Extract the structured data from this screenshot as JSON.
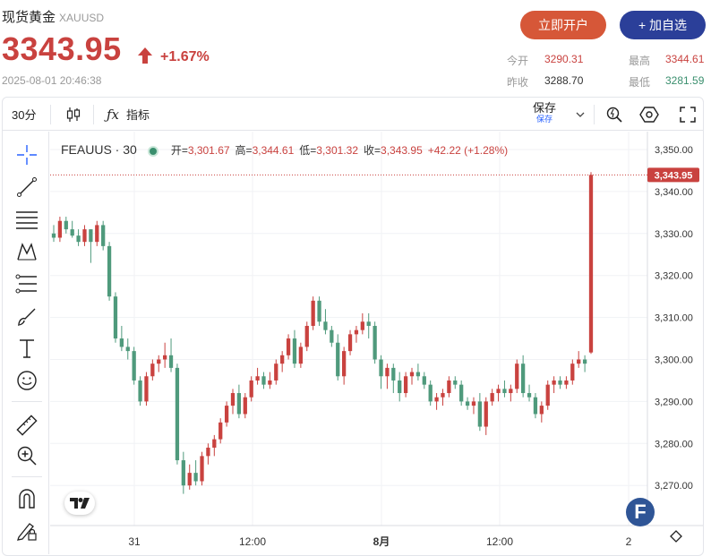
{
  "header": {
    "title": "现货黄金",
    "symbol": "XAUUSD",
    "price": "3343.95",
    "change_pct": "+1.67%",
    "timestamp": "2025-08-01 20:46:38",
    "open_account_label": "立即开户",
    "add_watch_label": "+ 加自选"
  },
  "stats": {
    "open_label": "今开",
    "open_value": "3290.31",
    "high_label": "最高",
    "high_value": "3344.61",
    "prev_close_label": "昨收",
    "prev_close_value": "3288.70",
    "low_label": "最低",
    "low_value": "3281.59"
  },
  "toolbar": {
    "interval": "30分",
    "indicators_label": "指标",
    "save_label": "保存",
    "save_sub_label": "保存"
  },
  "legend": {
    "symbol": "FEAUUS · 30",
    "open_k": "开=",
    "open_v": "3,301.67",
    "high_k": "高=",
    "high_v": "3,344.61",
    "low_k": "低=",
    "low_v": "3,301.32",
    "close_k": "收=",
    "close_v": "3,343.95",
    "change": "+42.22 (+1.28%)"
  },
  "icons": {
    "sidebar": [
      "crosshair-icon",
      "trend-line-icon",
      "horizontal-lines-icon",
      "pattern-icon",
      "fib-icon",
      "brush-icon",
      "text-icon",
      "emoji-icon",
      "ruler-icon",
      "zoom-in-icon",
      "magnet-icon",
      "lock-pencil-icon"
    ]
  },
  "colors": {
    "up": "#c9423f",
    "down": "#4f9a7c",
    "accent": "#2b3f99",
    "open_btn": "#d65738"
  },
  "chart_data": {
    "type": "candlestick",
    "interval": "30",
    "y_axis": {
      "min": 3265,
      "max": 3355,
      "ticks": [
        "3,350.00",
        "3,340.00",
        "3,330.00",
        "3,320.00",
        "3,310.00",
        "3,300.00",
        "3,290.00",
        "3,280.00",
        "3,270.00"
      ],
      "tick_values": [
        3350,
        3340,
        3330,
        3320,
        3310,
        3300,
        3290,
        3280,
        3270
      ]
    },
    "x_axis": {
      "ticks": [
        "31",
        "12:00",
        "8月",
        "12:00",
        "2"
      ]
    },
    "last_price_label": "3,343.95",
    "last_price": 3343.95,
    "candles": [
      [
        3330,
        3332,
        3328,
        3329
      ],
      [
        3329,
        3334,
        3328,
        3333
      ],
      [
        3333,
        3334,
        3330,
        3331
      ],
      [
        3331,
        3333,
        3329,
        3329.5
      ],
      [
        3329.5,
        3331,
        3327,
        3328
      ],
      [
        3328,
        3332,
        3327,
        3331
      ],
      [
        3331,
        3331,
        3323,
        3328
      ],
      [
        3328,
        3333,
        3327,
        3332
      ],
      [
        3332,
        3333,
        3326,
        3327
      ],
      [
        3327,
        3328,
        3314,
        3315
      ],
      [
        3315,
        3316,
        3304,
        3305
      ],
      [
        3305,
        3308,
        3302,
        3303
      ],
      [
        3303,
        3305,
        3300,
        3302
      ],
      [
        3302,
        3303,
        3294,
        3295
      ],
      [
        3295,
        3296,
        3289,
        3290
      ],
      [
        3290,
        3297,
        3289,
        3296
      ],
      [
        3296,
        3300,
        3295,
        3299
      ],
      [
        3299,
        3301,
        3297,
        3300
      ],
      [
        3300,
        3304,
        3298,
        3301
      ],
      [
        3301,
        3305,
        3297,
        3298
      ],
      [
        3298,
        3299,
        3275,
        3276
      ],
      [
        3276,
        3278,
        3268,
        3270
      ],
      [
        3270,
        3275,
        3269,
        3273
      ],
      [
        3273,
        3276,
        3270,
        3271
      ],
      [
        3271,
        3278,
        3270,
        3277
      ],
      [
        3277,
        3280,
        3275,
        3279
      ],
      [
        3279,
        3282,
        3277,
        3281
      ],
      [
        3281,
        3286,
        3280,
        3285
      ],
      [
        3285,
        3290,
        3284,
        3289
      ],
      [
        3289,
        3293,
        3287,
        3292
      ],
      [
        3292,
        3294,
        3286,
        3287
      ],
      [
        3287,
        3292,
        3286,
        3291
      ],
      [
        3291,
        3296,
        3290,
        3295
      ],
      [
        3295,
        3298,
        3294,
        3296
      ],
      [
        3296,
        3297,
        3293,
        3294
      ],
      [
        3294,
        3297,
        3293,
        3295
      ],
      [
        3295,
        3300,
        3294,
        3299
      ],
      [
        3299,
        3302,
        3297,
        3301
      ],
      [
        3301,
        3306,
        3300,
        3305
      ],
      [
        3305,
        3307,
        3298,
        3299
      ],
      [
        3299,
        3304,
        3298,
        3303
      ],
      [
        3303,
        3309,
        3302,
        3308
      ],
      [
        3308,
        3315,
        3307,
        3314
      ],
      [
        3314,
        3315,
        3308,
        3309
      ],
      [
        3309,
        3312,
        3306,
        3307
      ],
      [
        3307,
        3308,
        3303,
        3304
      ],
      [
        3304,
        3306,
        3295,
        3296
      ],
      [
        3296,
        3303,
        3294,
        3302
      ],
      [
        3302,
        3307,
        3301,
        3306
      ],
      [
        3306,
        3308,
        3304,
        3307
      ],
      [
        3307,
        3311,
        3306,
        3309
      ],
      [
        3309,
        3311,
        3305,
        3308
      ],
      [
        3308,
        3309,
        3299,
        3300
      ],
      [
        3300,
        3301,
        3293,
        3296
      ],
      [
        3296,
        3299,
        3293,
        3298
      ],
      [
        3298,
        3299,
        3292,
        3295
      ],
      [
        3295,
        3297,
        3290,
        3292
      ],
      [
        3292,
        3297,
        3291,
        3296
      ],
      [
        3296,
        3298,
        3294,
        3297
      ],
      [
        3297,
        3299,
        3295,
        3296
      ],
      [
        3296,
        3297,
        3293,
        3294
      ],
      [
        3294,
        3295,
        3289,
        3290
      ],
      [
        3290,
        3292,
        3288,
        3291
      ],
      [
        3291,
        3293,
        3289,
        3292
      ],
      [
        3292,
        3296,
        3291,
        3295
      ],
      [
        3295,
        3296,
        3293,
        3294
      ],
      [
        3294,
        3295,
        3289,
        3290
      ],
      [
        3290,
        3291,
        3288,
        3289
      ],
      [
        3289,
        3291,
        3287,
        3290
      ],
      [
        3290,
        3292,
        3283,
        3284
      ],
      [
        3284,
        3291,
        3282,
        3290
      ],
      [
        3290,
        3293,
        3289,
        3292
      ],
      [
        3292,
        3294,
        3290,
        3293
      ],
      [
        3293,
        3295,
        3291,
        3292
      ],
      [
        3292,
        3294,
        3290,
        3293
      ],
      [
        3293,
        3300,
        3292,
        3299
      ],
      [
        3299,
        3301,
        3291,
        3292
      ],
      [
        3292,
        3294,
        3290,
        3291
      ],
      [
        3291,
        3292,
        3286,
        3287
      ],
      [
        3287,
        3290,
        3285,
        3289
      ],
      [
        3289,
        3295,
        3288,
        3294
      ],
      [
        3294,
        3296,
        3292,
        3295
      ],
      [
        3295,
        3296,
        3293,
        3294
      ],
      [
        3294,
        3296,
        3293,
        3295
      ],
      [
        3295,
        3300,
        3294,
        3299
      ],
      [
        3299,
        3302,
        3298,
        3300
      ],
      [
        3300,
        3301,
        3297,
        3299
      ],
      [
        3301.67,
        3344.61,
        3301.32,
        3343.95
      ]
    ]
  }
}
